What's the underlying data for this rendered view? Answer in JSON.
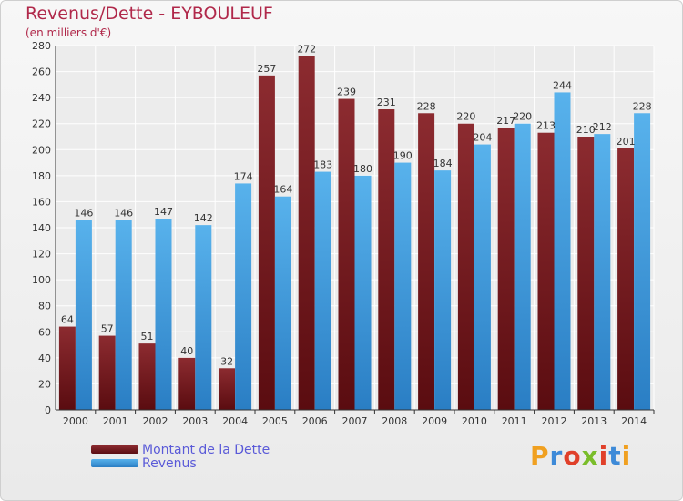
{
  "header": {
    "title": "Revenus/Dette - EYBOULEUF",
    "subtitle": "(en milliers d'€)"
  },
  "legend": {
    "items": [
      {
        "label": "Montant de la Dette",
        "color": "#7a1e25"
      },
      {
        "label": "Revenus",
        "color": "#3d9ee0"
      }
    ]
  },
  "logo": {
    "text": "Proxiti",
    "colors": [
      "#f0a020",
      "#3d8ad8",
      "#e0402a",
      "#7abd2a",
      "#e0402a",
      "#3d8ad8",
      "#f0a020"
    ]
  },
  "chart_data": {
    "type": "bar",
    "categories": [
      "2000",
      "2001",
      "2002",
      "2003",
      "2004",
      "2005",
      "2006",
      "2007",
      "2008",
      "2009",
      "2010",
      "2011",
      "2012",
      "2013",
      "2014"
    ],
    "series": [
      {
        "name": "Montant de la Dette",
        "color": "#7a1e25",
        "values": [
          64,
          57,
          51,
          40,
          32,
          257,
          272,
          239,
          231,
          228,
          220,
          217,
          213,
          210,
          201
        ]
      },
      {
        "name": "Revenus",
        "color": "#3d9ee0",
        "values": [
          146,
          146,
          147,
          142,
          174,
          164,
          183,
          180,
          190,
          184,
          204,
          220,
          244,
          212,
          228
        ]
      }
    ],
    "ylim": [
      0,
      280
    ],
    "yticks": [
      0,
      20,
      40,
      60,
      80,
      100,
      120,
      140,
      160,
      180,
      200,
      220,
      240,
      260,
      280
    ],
    "grid": true,
    "legend": "bottom-left"
  }
}
